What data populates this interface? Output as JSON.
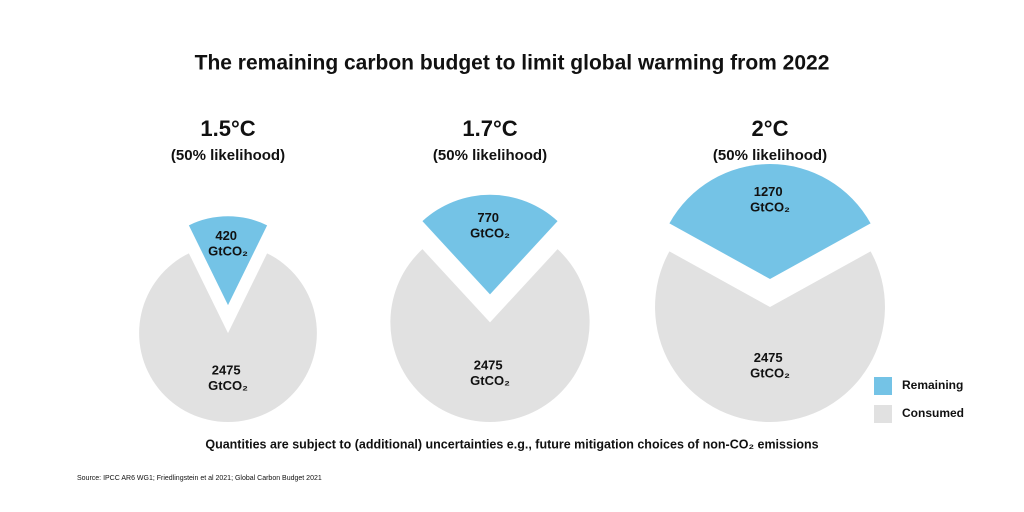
{
  "title": "The remaining carbon budget to limit global warming from 2022",
  "note": "Quantities are subject to (additional) uncertainties e.g., future mitigation choices of non-CO₂ emissions",
  "source": "Source: IPCC AR6 WG1; Friedlingstein et al 2021; Global Carbon Budget 2021",
  "chart_data": [
    {
      "type": "pie",
      "title": "1.5°C",
      "subtitle": "(50% likelihood)",
      "categories": [
        "Remaining",
        "Consumed"
      ],
      "values": [
        420,
        2475
      ],
      "value_labels": [
        "420 GtCO₂",
        "2475 GtCO₂"
      ],
      "colors": [
        "#74c3e6",
        "#e1e1e1"
      ]
    },
    {
      "type": "pie",
      "title": "1.7°C",
      "subtitle": "(50% likelihood)",
      "categories": [
        "Remaining",
        "Consumed"
      ],
      "values": [
        770,
        2475
      ],
      "value_labels": [
        "770 GtCO₂",
        "2475 GtCO₂"
      ],
      "colors": [
        "#74c3e6",
        "#e1e1e1"
      ]
    },
    {
      "type": "pie",
      "title": "2°C",
      "subtitle": "(50% likelihood)",
      "categories": [
        "Remaining",
        "Consumed"
      ],
      "values": [
        1270,
        2475
      ],
      "value_labels": [
        "1270 GtCO₂",
        "2475 GtCO₂"
      ],
      "colors": [
        "#74c3e6",
        "#e1e1e1"
      ]
    }
  ]
}
